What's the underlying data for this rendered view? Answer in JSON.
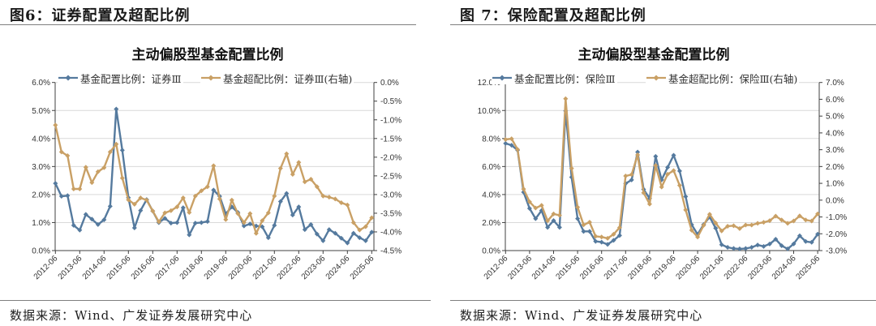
{
  "panels": [
    {
      "figure_title": "图6：证券配置及超配比例",
      "source": "数据来源：Wind、广发证券发展研究中心"
    },
    {
      "figure_title": "图 7：保险配置及超配比例",
      "source": "数据来源：Wind、广发证券发展研究中心"
    }
  ],
  "chart_data": [
    {
      "type": "line",
      "title": "主动偏股型基金配置比例",
      "xlabel": "",
      "ylabel": "",
      "grid": true,
      "legend_position": "top",
      "categories": [
        "2012-06",
        "2012-09",
        "2012-12",
        "2013-03",
        "2013-06",
        "2013-09",
        "2013-12",
        "2014-03",
        "2014-06",
        "2014-09",
        "2014-12",
        "2015-03",
        "2015-06",
        "2015-09",
        "2015-12",
        "2016-03",
        "2016-06",
        "2016-09",
        "2016-12",
        "2017-03",
        "2017-06",
        "2017-09",
        "2017-12",
        "2018-03",
        "2018-06",
        "2018-09",
        "2018-12",
        "2019-03",
        "2019-06",
        "2019-09",
        "2019-12",
        "2020-03",
        "2020-06",
        "2020-09",
        "2020-12",
        "2021-03",
        "2021-06",
        "2021-09",
        "2021-12",
        "2022-03",
        "2022-06",
        "2022-09",
        "2022-12",
        "2023-03",
        "2023-06",
        "2023-09",
        "2023-12",
        "2024-03",
        "2024-06",
        "2024-09",
        "2024-12",
        "2025-03",
        "2025-06"
      ],
      "x_tick_labels": [
        "2012-06",
        "2013-06",
        "2014-06",
        "2015-06",
        "2016-06",
        "2017-06",
        "2018-06",
        "2019-06",
        "2020-06",
        "2021-06",
        "2022-06",
        "2023-06",
        "2024-06",
        "2025-06"
      ],
      "y_left": {
        "min": 0,
        "max": 6,
        "step": 1,
        "ticks": [
          "0.0%",
          "1.0%",
          "2.0%",
          "3.0%",
          "4.0%",
          "5.0%",
          "6.0%"
        ]
      },
      "y_right": {
        "min": -4.5,
        "max": 0,
        "step": 0.5,
        "ticks": [
          "-4.5%",
          "-4.0%",
          "-3.5%",
          "-3.0%",
          "-2.5%",
          "-2.0%",
          "-1.5%",
          "-1.0%",
          "-0.5%",
          "0.0%"
        ]
      },
      "series": [
        {
          "name": "基金配置比例：证券Ⅲ",
          "axis": "left",
          "color": "#557a9e",
          "values": [
            2.4,
            1.94,
            1.96,
            0.9,
            0.73,
            1.29,
            1.12,
            0.93,
            1.1,
            1.58,
            5.05,
            3.58,
            1.89,
            0.81,
            1.43,
            1.82,
            1.41,
            1.0,
            1.15,
            0.98,
            1.0,
            1.53,
            0.56,
            0.98,
            1.0,
            1.04,
            2.16,
            1.94,
            1.31,
            1.56,
            1.36,
            0.88,
            0.95,
            0.88,
            0.85,
            0.46,
            0.9,
            1.75,
            2.04,
            1.27,
            1.56,
            0.75,
            0.93,
            0.59,
            0.35,
            0.75,
            0.62,
            0.44,
            0.27,
            0.62,
            0.46,
            0.35,
            0.66
          ]
        },
        {
          "name": "基金超配比例：证券Ⅲ(右轴)",
          "axis": "right",
          "color": "#c9a065",
          "values": [
            -1.14,
            -1.86,
            -1.96,
            -2.85,
            -2.85,
            -2.27,
            -2.68,
            -2.39,
            -2.28,
            -1.86,
            -1.65,
            -2.56,
            -3.14,
            -3.26,
            -3.09,
            -3.15,
            -3.44,
            -3.73,
            -3.49,
            -3.43,
            -3.33,
            -3.09,
            -3.48,
            -3.04,
            -2.9,
            -2.79,
            -2.23,
            -3.12,
            -3.67,
            -3.15,
            -3.51,
            -3.75,
            -3.51,
            -4.04,
            -3.7,
            -3.49,
            -3.04,
            -2.3,
            -1.91,
            -2.46,
            -2.14,
            -2.66,
            -2.59,
            -2.79,
            -3.04,
            -3.07,
            -3.12,
            -3.22,
            -3.28,
            -3.75,
            -3.95,
            -3.86,
            -3.62
          ]
        }
      ]
    },
    {
      "type": "line",
      "title": "主动偏股型基金配置比例",
      "xlabel": "",
      "ylabel": "",
      "grid": true,
      "legend_position": "top",
      "categories": [
        "2012-06",
        "2012-09",
        "2012-12",
        "2013-03",
        "2013-06",
        "2013-09",
        "2013-12",
        "2014-03",
        "2014-06",
        "2014-09",
        "2014-12",
        "2015-03",
        "2015-06",
        "2015-09",
        "2015-12",
        "2016-03",
        "2016-06",
        "2016-09",
        "2016-12",
        "2017-03",
        "2017-06",
        "2017-09",
        "2017-12",
        "2018-03",
        "2018-06",
        "2018-09",
        "2018-12",
        "2019-03",
        "2019-06",
        "2019-09",
        "2019-12",
        "2020-03",
        "2020-06",
        "2020-09",
        "2020-12",
        "2021-03",
        "2021-06",
        "2021-09",
        "2021-12",
        "2022-03",
        "2022-06",
        "2022-09",
        "2022-12",
        "2023-03",
        "2023-06",
        "2023-09",
        "2023-12",
        "2024-03",
        "2024-06",
        "2024-09",
        "2024-12",
        "2025-03",
        "2025-06"
      ],
      "x_tick_labels": [
        "2012-06",
        "2013-06",
        "2014-06",
        "2015-06",
        "2016-06",
        "2017-06",
        "2018-06",
        "2019-06",
        "2020-06",
        "2021-06",
        "2022-06",
        "2023-06",
        "2024-06",
        "2025-06"
      ],
      "y_left": {
        "min": 0,
        "max": 12,
        "step": 2,
        "ticks": [
          "0.0%",
          "2.0%",
          "4.0%",
          "6.0%",
          "8.0%",
          "10.0%",
          "12.0%"
        ]
      },
      "y_right": {
        "min": -3,
        "max": 7,
        "step": 1,
        "ticks": [
          "-3.0%",
          "-2.0%",
          "-1.0%",
          "0.0%",
          "1.0%",
          "2.0%",
          "3.0%",
          "4.0%",
          "5.0%",
          "6.0%",
          "7.0%"
        ]
      },
      "series": [
        {
          "name": "基金配置比例：保险Ⅲ",
          "axis": "left",
          "color": "#557a9e",
          "values": [
            7.65,
            7.52,
            7.17,
            4.17,
            3.01,
            2.28,
            2.86,
            1.66,
            2.14,
            1.66,
            9.97,
            5.24,
            2.28,
            1.37,
            1.37,
            0.66,
            0.6,
            0.44,
            0.73,
            1.08,
            4.79,
            5.04,
            7.03,
            4.37,
            3.72,
            6.72,
            5.05,
            5.94,
            6.8,
            5.68,
            3.86,
            1.85,
            1.16,
            1.86,
            2.4,
            1.6,
            0.42,
            0.23,
            0.15,
            0.12,
            0.15,
            0.23,
            0.4,
            0.3,
            0.47,
            0.81,
            0.35,
            0.12,
            0.48,
            1.06,
            0.65,
            0.59,
            1.17
          ]
        },
        {
          "name": "基金超配比例：保险Ⅲ(右轴)",
          "axis": "right",
          "color": "#c9a065",
          "values": [
            3.61,
            3.65,
            3.02,
            0.66,
            -0.1,
            -0.47,
            -0.31,
            -1.23,
            -0.82,
            -0.9,
            6.03,
            1.89,
            -0.42,
            -1.47,
            -1.31,
            -2.15,
            -2.19,
            -2.27,
            -2.03,
            -1.63,
            1.44,
            1.52,
            2.69,
            0.44,
            -0.23,
            2.06,
            0.78,
            1.54,
            1.76,
            0.88,
            -0.58,
            -1.79,
            -2.19,
            -1.5,
            -0.84,
            -1.36,
            -1.83,
            -1.55,
            -1.52,
            -1.69,
            -1.48,
            -1.48,
            -1.38,
            -1.32,
            -1.22,
            -0.95,
            -1.18,
            -1.38,
            -1.24,
            -0.94,
            -1.18,
            -1.24,
            -0.82
          ]
        }
      ]
    }
  ]
}
